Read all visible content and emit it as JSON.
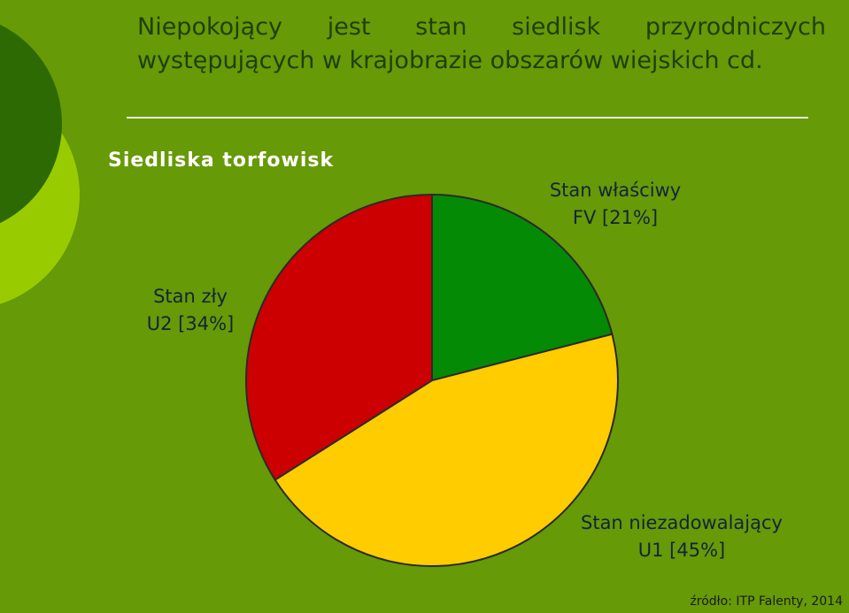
{
  "header": {
    "title": "Niepokojący jest stan siedlisk przyrodniczych występujących w krajobrazie obszarów wiejskich cd."
  },
  "chart_data": {
    "type": "pie",
    "title": "Siedliska torfowisk",
    "categories": [
      "Stan właściwy",
      "Stan niezadowalający",
      "Stan zły"
    ],
    "values": [
      21,
      45,
      34
    ],
    "value_labels": [
      "FV [21%]",
      "U1 [45%]",
      "U2 [34%]"
    ],
    "colors": [
      "#058a05",
      "#ffcc00",
      "#cc0000"
    ]
  },
  "footer": {
    "source": "źródło: ITP Falenty, 2014"
  }
}
